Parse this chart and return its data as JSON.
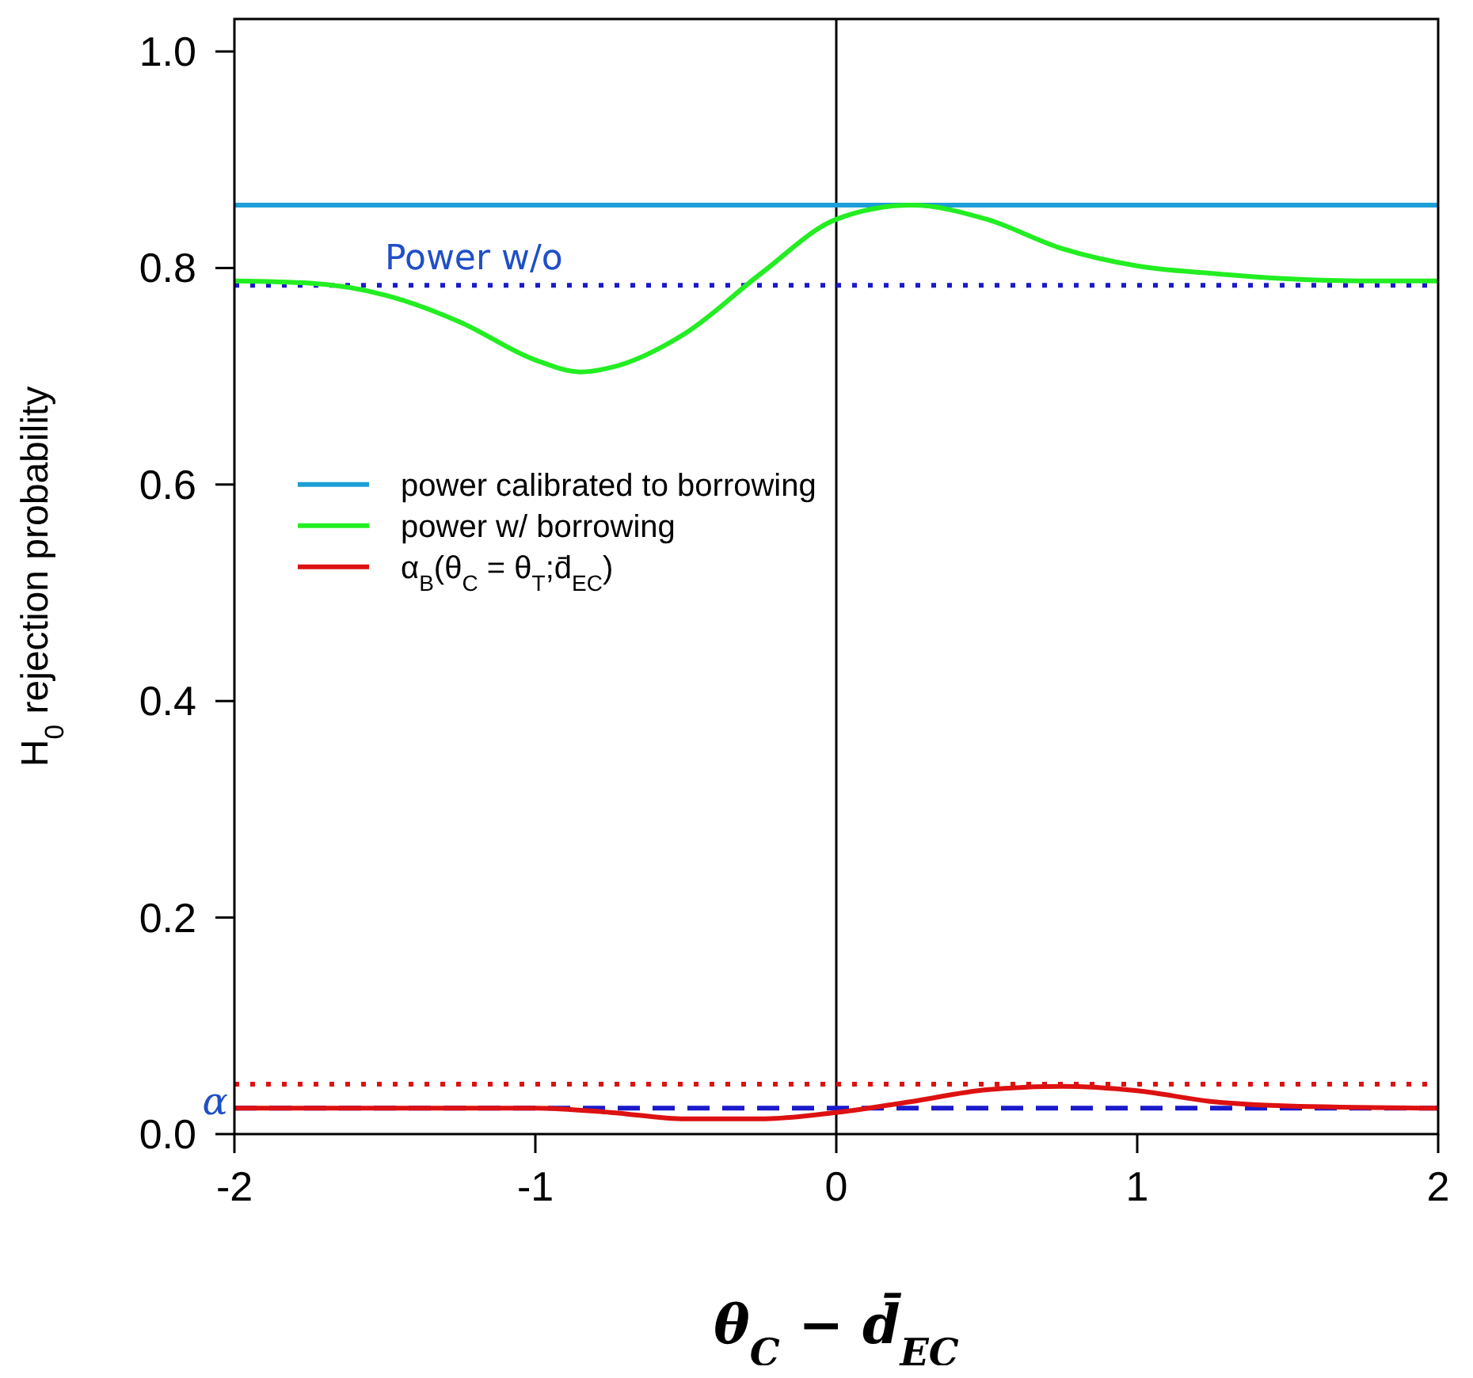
{
  "chart_data": {
    "type": "line",
    "xlabel": "θ$_{C}$ − d̄$_{EC}$",
    "ylabel": "H$_{0}$ rejection probability",
    "xlim": [
      -2,
      2
    ],
    "xticks": [
      -2,
      -1,
      0,
      1,
      2
    ],
    "ylim": [
      0,
      1.03
    ],
    "yticks": [
      {
        "value": 0,
        "label": "0.0"
      },
      {
        "value": 0.2,
        "label": "0.2"
      },
      {
        "value": 0.4,
        "label": "0.4"
      },
      {
        "value": 0.6,
        "label": "0.6"
      },
      {
        "value": 0.8,
        "label": "0.8"
      },
      {
        "value": 1,
        "label": "1.0"
      }
    ],
    "grid": false,
    "legend": "left",
    "line_style": "solid",
    "marker": "none",
    "series": [
      {
        "name": "power calibrated to borrowing",
        "color": "#1c9ed6",
        "x": [
          -2,
          2
        ],
        "values": [
          0.858,
          0.858
        ]
      },
      {
        "name": "power w/ borrowing",
        "color": "#22ee22",
        "x": [
          -2,
          -1.75,
          -1.5,
          -1.25,
          -1,
          -0.85,
          -0.75,
          -0.5,
          -0.25,
          0,
          0.25,
          0.5,
          0.75,
          1,
          1.25,
          1.5,
          1.75,
          2
        ],
        "values": [
          0.788,
          0.786,
          0.775,
          0.75,
          0.715,
          0.704,
          0.708,
          0.74,
          0.795,
          0.845,
          0.858,
          0.845,
          0.818,
          0.802,
          0.795,
          0.79,
          0.788,
          0.788
        ]
      },
      {
        "name": "α$_{B}$(θ$_{C}$ = θ$_{T}$;d̄$_{EC}$)",
        "color": "#dd1111",
        "x": [
          -2,
          -1,
          -0.75,
          -0.5,
          -0.25,
          0,
          0.25,
          0.5,
          0.75,
          1,
          1.25,
          1.5,
          2
        ],
        "values": [
          0.024,
          0.024,
          0.02,
          0.014,
          0.014,
          0.02,
          0.03,
          0.041,
          0.044,
          0.04,
          0.03,
          0.026,
          0.024
        ]
      }
    ],
    "ref_lines": [
      {
        "axis": "x",
        "value": 0,
        "color": "#000000",
        "line_style": "solid"
      },
      {
        "axis": "y",
        "value": 0.784,
        "label": "Power w/o",
        "color": "#1a1acc",
        "line_style": "dotted"
      },
      {
        "axis": "y",
        "value": 0.046,
        "color": "#dd1111",
        "line_style": "dotted"
      },
      {
        "axis": "y",
        "value": 0.024,
        "label": "α",
        "color": "#1a1acc",
        "line_style": "dashed"
      }
    ]
  }
}
